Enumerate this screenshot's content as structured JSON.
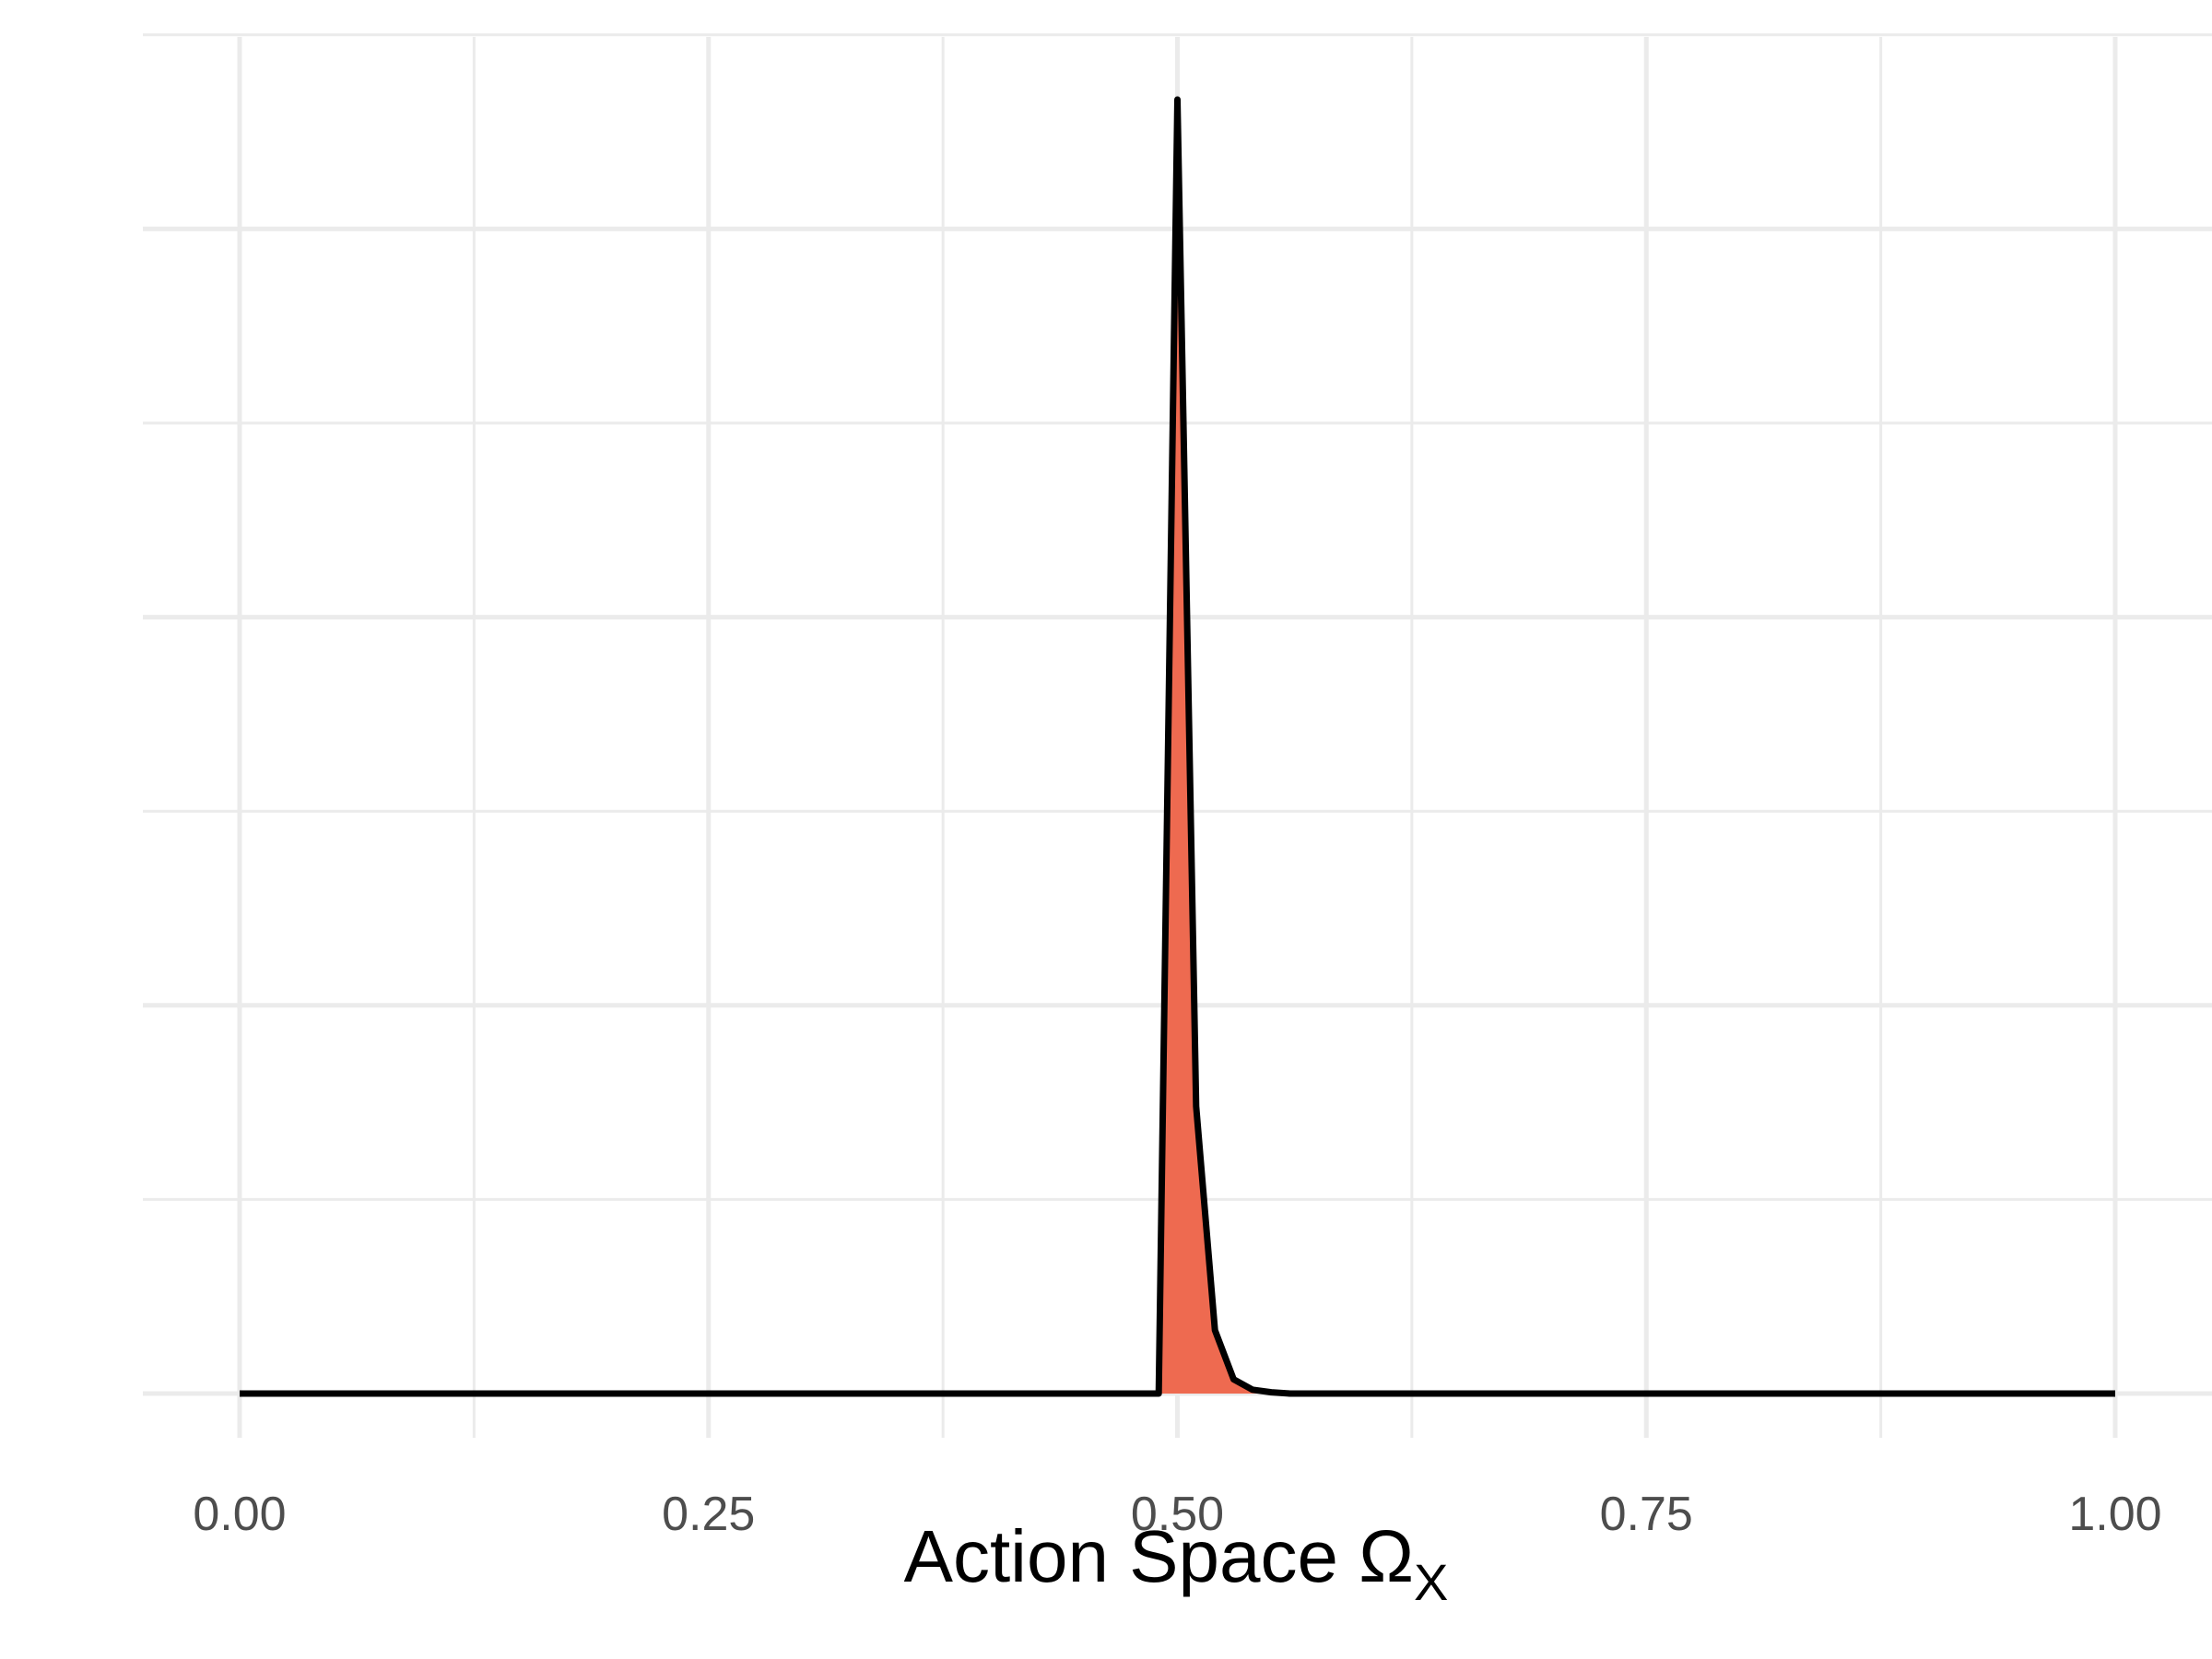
{
  "chart_data": {
    "type": "area",
    "title": "",
    "xlabel": "Action Space Ω",
    "xlabel_subscript": "X",
    "ylabel": "",
    "xlim": [
      -0.05,
      1.05
    ],
    "ylim": [
      -0.045,
      1.0
    ],
    "x_ticks": [
      0.0,
      0.25,
      0.5,
      0.75,
      1.0
    ],
    "x_tick_labels": [
      "0.00",
      "0.25",
      "0.50",
      "0.75",
      "1.00"
    ],
    "y_gridlines": [
      0.0,
      0.15,
      0.3,
      0.45,
      0.6,
      0.75,
      0.9,
      1.05
    ],
    "show_y_tick_labels": false,
    "grid": true,
    "series": [
      {
        "fill": "#ee6a50",
        "stroke": "#000000",
        "x": [
          0.0,
          0.49,
          0.5,
          0.51,
          0.52,
          0.53,
          0.54,
          0.55,
          0.56,
          0.58,
          0.6,
          1.0
        ],
        "y": [
          0.0,
          0.0,
          1.0,
          0.222,
          0.049,
          0.011,
          0.003,
          0.001,
          0.0,
          0.0,
          0.0,
          0.0
        ]
      }
    ]
  }
}
